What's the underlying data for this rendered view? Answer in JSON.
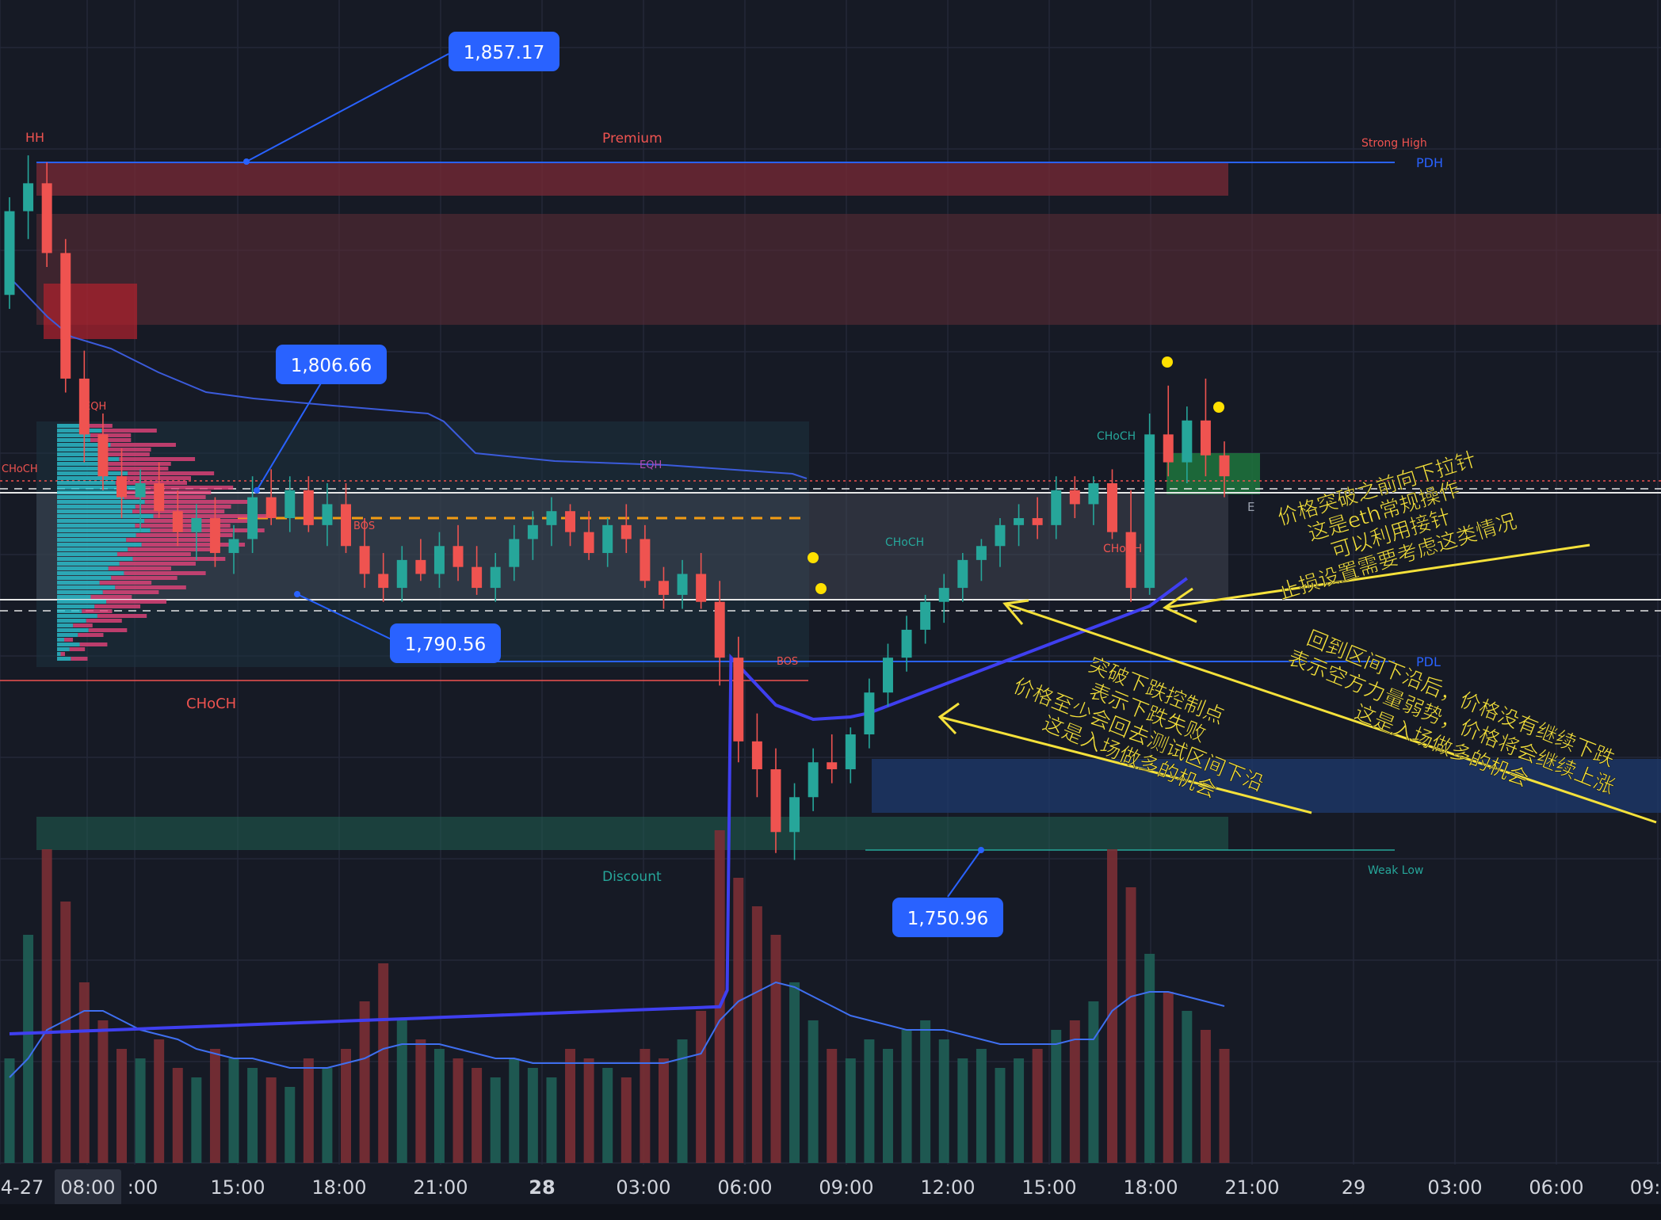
{
  "chart_data": {
    "type": "candlestick",
    "instrument_note": "",
    "y_range": [
      1738,
      1872
    ],
    "x_ticks": [
      {
        "label": "4-27",
        "bold": false
      },
      {
        "label": "08:00",
        "bold": false
      },
      {
        "label": ":00",
        "bold": false
      },
      {
        "label": "15:00",
        "bold": false
      },
      {
        "label": "18:00",
        "bold": false
      },
      {
        "label": "21:00",
        "bold": false
      },
      {
        "label": "28",
        "bold": true
      },
      {
        "label": "03:00",
        "bold": false
      },
      {
        "label": "06:00",
        "bold": false
      },
      {
        "label": "09:00",
        "bold": false
      },
      {
        "label": "12:00",
        "bold": false
      },
      {
        "label": "15:00",
        "bold": false
      },
      {
        "label": "18:00",
        "bold": false
      },
      {
        "label": "21:00",
        "bold": false
      },
      {
        "label": "29",
        "bold": false
      },
      {
        "label": "03:00",
        "bold": false
      },
      {
        "label": "06:00",
        "bold": false
      },
      {
        "label": "09:"
      }
    ],
    "price_callouts": [
      {
        "label": "1,857.17",
        "price": 1857.17
      },
      {
        "label": "1,806.66",
        "price": 1806.66
      },
      {
        "label": "1,790.56",
        "price": 1790.56
      },
      {
        "label": "1,750.96",
        "price": 1750.96
      }
    ],
    "structure_labels": [
      "HH",
      "Premium",
      "Strong High",
      "PDH",
      "EQH",
      "CHoCH",
      "BOS",
      "EQH",
      "CHoCH",
      "CHoCH",
      "CHoCH",
      "BOS",
      "PDL",
      "Discount",
      "Weak Low",
      "E"
    ],
    "candles": [
      {
        "o": 1832,
        "h": 1846,
        "l": 1830,
        "c": 1844
      },
      {
        "o": 1844,
        "h": 1852,
        "l": 1840,
        "c": 1848
      },
      {
        "o": 1848,
        "h": 1851,
        "l": 1836,
        "c": 1838
      },
      {
        "o": 1838,
        "h": 1840,
        "l": 1818,
        "c": 1820
      },
      {
        "o": 1820,
        "h": 1824,
        "l": 1808,
        "c": 1812
      },
      {
        "o": 1812,
        "h": 1815,
        "l": 1804,
        "c": 1806
      },
      {
        "o": 1806,
        "h": 1810,
        "l": 1800,
        "c": 1803
      },
      {
        "o": 1803,
        "h": 1807,
        "l": 1798,
        "c": 1805
      },
      {
        "o": 1805,
        "h": 1808,
        "l": 1800,
        "c": 1801
      },
      {
        "o": 1801,
        "h": 1804,
        "l": 1796,
        "c": 1798
      },
      {
        "o": 1798,
        "h": 1802,
        "l": 1794,
        "c": 1800
      },
      {
        "o": 1800,
        "h": 1803,
        "l": 1793,
        "c": 1795
      },
      {
        "o": 1795,
        "h": 1799,
        "l": 1792,
        "c": 1797
      },
      {
        "o": 1797,
        "h": 1806,
        "l": 1795,
        "c": 1803
      },
      {
        "o": 1803,
        "h": 1807,
        "l": 1799,
        "c": 1800
      },
      {
        "o": 1800,
        "h": 1806,
        "l": 1798,
        "c": 1804
      },
      {
        "o": 1804,
        "h": 1806,
        "l": 1798,
        "c": 1799
      },
      {
        "o": 1799,
        "h": 1805,
        "l": 1796,
        "c": 1802
      },
      {
        "o": 1802,
        "h": 1805,
        "l": 1795,
        "c": 1796
      },
      {
        "o": 1796,
        "h": 1800,
        "l": 1790,
        "c": 1792
      },
      {
        "o": 1792,
        "h": 1795,
        "l": 1788,
        "c": 1790
      },
      {
        "o": 1790,
        "h": 1796,
        "l": 1788,
        "c": 1794
      },
      {
        "o": 1794,
        "h": 1797,
        "l": 1791,
        "c": 1792
      },
      {
        "o": 1792,
        "h": 1798,
        "l": 1790,
        "c": 1796
      },
      {
        "o": 1796,
        "h": 1799,
        "l": 1791,
        "c": 1793
      },
      {
        "o": 1793,
        "h": 1796,
        "l": 1789,
        "c": 1790
      },
      {
        "o": 1790,
        "h": 1795,
        "l": 1788,
        "c": 1793
      },
      {
        "o": 1793,
        "h": 1799,
        "l": 1791,
        "c": 1797
      },
      {
        "o": 1797,
        "h": 1801,
        "l": 1794,
        "c": 1799
      },
      {
        "o": 1799,
        "h": 1803,
        "l": 1796,
        "c": 1801
      },
      {
        "o": 1801,
        "h": 1802,
        "l": 1796,
        "c": 1798
      },
      {
        "o": 1798,
        "h": 1801,
        "l": 1794,
        "c": 1795
      },
      {
        "o": 1795,
        "h": 1800,
        "l": 1793,
        "c": 1799
      },
      {
        "o": 1799,
        "h": 1802,
        "l": 1795,
        "c": 1797
      },
      {
        "o": 1797,
        "h": 1799,
        "l": 1790,
        "c": 1791
      },
      {
        "o": 1791,
        "h": 1793,
        "l": 1787,
        "c": 1789
      },
      {
        "o": 1789,
        "h": 1794,
        "l": 1787,
        "c": 1792
      },
      {
        "o": 1792,
        "h": 1795,
        "l": 1787,
        "c": 1788
      },
      {
        "o": 1788,
        "h": 1791,
        "l": 1776,
        "c": 1780
      },
      {
        "o": 1780,
        "h": 1783,
        "l": 1765,
        "c": 1768
      },
      {
        "o": 1768,
        "h": 1772,
        "l": 1760,
        "c": 1764
      },
      {
        "o": 1764,
        "h": 1767,
        "l": 1752,
        "c": 1755
      },
      {
        "o": 1755,
        "h": 1762,
        "l": 1751,
        "c": 1760
      },
      {
        "o": 1760,
        "h": 1767,
        "l": 1758,
        "c": 1765
      },
      {
        "o": 1765,
        "h": 1769,
        "l": 1762,
        "c": 1764
      },
      {
        "o": 1764,
        "h": 1770,
        "l": 1762,
        "c": 1769
      },
      {
        "o": 1769,
        "h": 1777,
        "l": 1767,
        "c": 1775
      },
      {
        "o": 1775,
        "h": 1782,
        "l": 1773,
        "c": 1780
      },
      {
        "o": 1780,
        "h": 1786,
        "l": 1778,
        "c": 1784
      },
      {
        "o": 1784,
        "h": 1789,
        "l": 1782,
        "c": 1788
      },
      {
        "o": 1788,
        "h": 1792,
        "l": 1785,
        "c": 1790
      },
      {
        "o": 1790,
        "h": 1795,
        "l": 1788,
        "c": 1794
      },
      {
        "o": 1794,
        "h": 1797,
        "l": 1791,
        "c": 1796
      },
      {
        "o": 1796,
        "h": 1800,
        "l": 1793,
        "c": 1799
      },
      {
        "o": 1799,
        "h": 1802,
        "l": 1796,
        "c": 1800
      },
      {
        "o": 1800,
        "h": 1803,
        "l": 1797,
        "c": 1799
      },
      {
        "o": 1799,
        "h": 1806,
        "l": 1797,
        "c": 1804
      },
      {
        "o": 1804,
        "h": 1806,
        "l": 1800,
        "c": 1802
      },
      {
        "o": 1802,
        "h": 1806,
        "l": 1799,
        "c": 1805
      },
      {
        "o": 1805,
        "h": 1807,
        "l": 1797,
        "c": 1798
      },
      {
        "o": 1798,
        "h": 1804,
        "l": 1788,
        "c": 1790
      },
      {
        "o": 1790,
        "h": 1815,
        "l": 1789,
        "c": 1812
      },
      {
        "o": 1812,
        "h": 1819,
        "l": 1806,
        "c": 1808
      },
      {
        "o": 1808,
        "h": 1816,
        "l": 1805,
        "c": 1814
      },
      {
        "o": 1814,
        "h": 1820,
        "l": 1806,
        "c": 1809
      },
      {
        "o": 1809,
        "h": 1811,
        "l": 1803,
        "c": 1806
      }
    ],
    "volume": [
      22,
      48,
      66,
      55,
      38,
      30,
      24,
      22,
      26,
      20,
      18,
      24,
      22,
      20,
      18,
      16,
      22,
      20,
      24,
      34,
      42,
      30,
      26,
      24,
      22,
      20,
      18,
      22,
      20,
      18,
      24,
      22,
      20,
      18,
      24,
      22,
      26,
      32,
      70,
      60,
      54,
      48,
      38,
      30,
      24,
      22,
      26,
      24,
      28,
      30,
      26,
      22,
      24,
      20,
      22,
      24,
      28,
      30,
      34,
      66,
      58,
      44,
      36,
      32,
      28,
      24
    ],
    "volume_ma": [
      18,
      22,
      28,
      30,
      32,
      32,
      30,
      28,
      27,
      26,
      24,
      23,
      22,
      22,
      21,
      20,
      20,
      20,
      21,
      22,
      24,
      25,
      25,
      25,
      24,
      23,
      22,
      22,
      21,
      21,
      21,
      21,
      21,
      21,
      21,
      21,
      22,
      23,
      30,
      34,
      36,
      38,
      37,
      35,
      33,
      31,
      30,
      29,
      28,
      28,
      28,
      27,
      26,
      25,
      25,
      25,
      25,
      26,
      26,
      32,
      35,
      36,
      36,
      35,
      34,
      33
    ],
    "colors": {
      "background": "#161a25",
      "up": "#26a69a",
      "down": "#ef5350",
      "callout": "#2962ff",
      "annotation": "#f5e13a",
      "vwap": "#3f3ff0",
      "premium_zone": "#7a2a36",
      "discount_zone": "#1f5a4e"
    }
  },
  "annotations": [
    {
      "lines": [
        "价格突破之前向下拉针",
        "这是eth常规操作",
        "可以利用接针",
        "止损设置需要考虑这类情况"
      ]
    },
    {
      "lines": [
        "回到区间下沿后，价格没有继续下跌",
        "表示空方力量弱势，价格将会继续上涨",
        "这是入场做多的机会"
      ]
    },
    {
      "lines": [
        "突破下跌控制点",
        "表示下跌失败",
        "价格至少会回去测试区间下沿",
        "这是入场做多的机会"
      ]
    }
  ]
}
